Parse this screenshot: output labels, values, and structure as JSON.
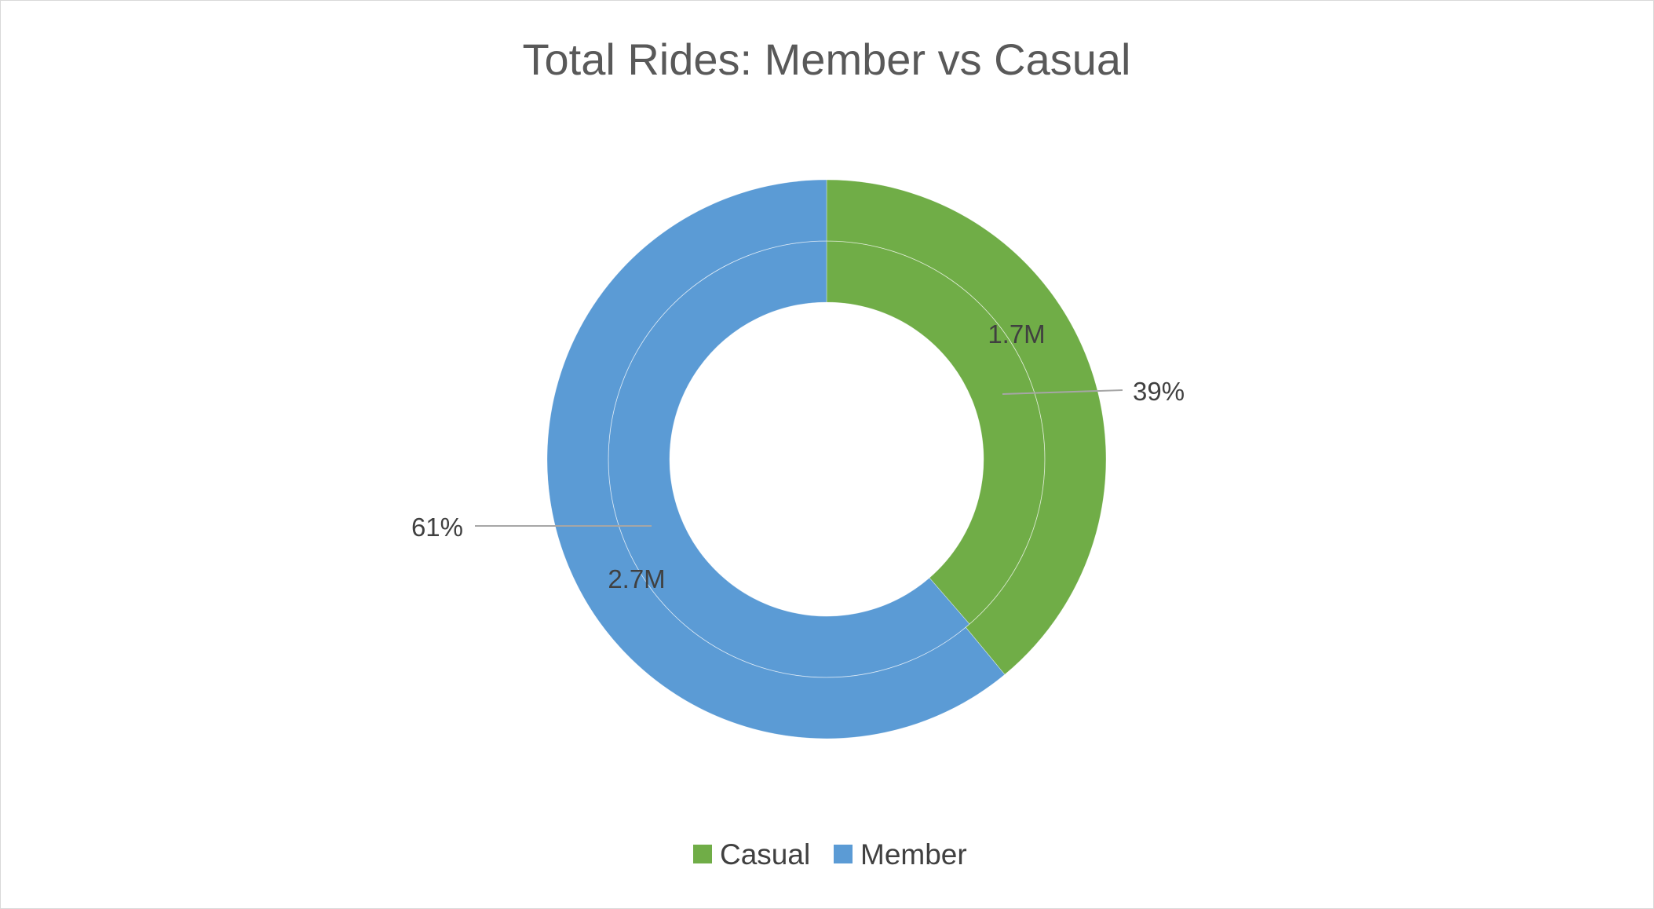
{
  "chart_data": {
    "type": "pie",
    "variant": "doughnut",
    "title": "Total Rides: Member vs Casual",
    "categories": [
      "Casual",
      "Member"
    ],
    "rings": [
      {
        "name": "",
        "ring": "inner",
        "values": [
          1.7,
          2.7
        ],
        "labels": [
          "1.7M",
          "2.7M"
        ]
      },
      {
        "name": "",
        "ring": "outer",
        "values": [
          39,
          61
        ],
        "labels": [
          "39%",
          "61%"
        ]
      }
    ],
    "colors": [
      "#70AD47",
      "#5B9BD5"
    ],
    "legend": {
      "position": "bottom",
      "entries": [
        "Casual",
        "Member"
      ]
    }
  }
}
